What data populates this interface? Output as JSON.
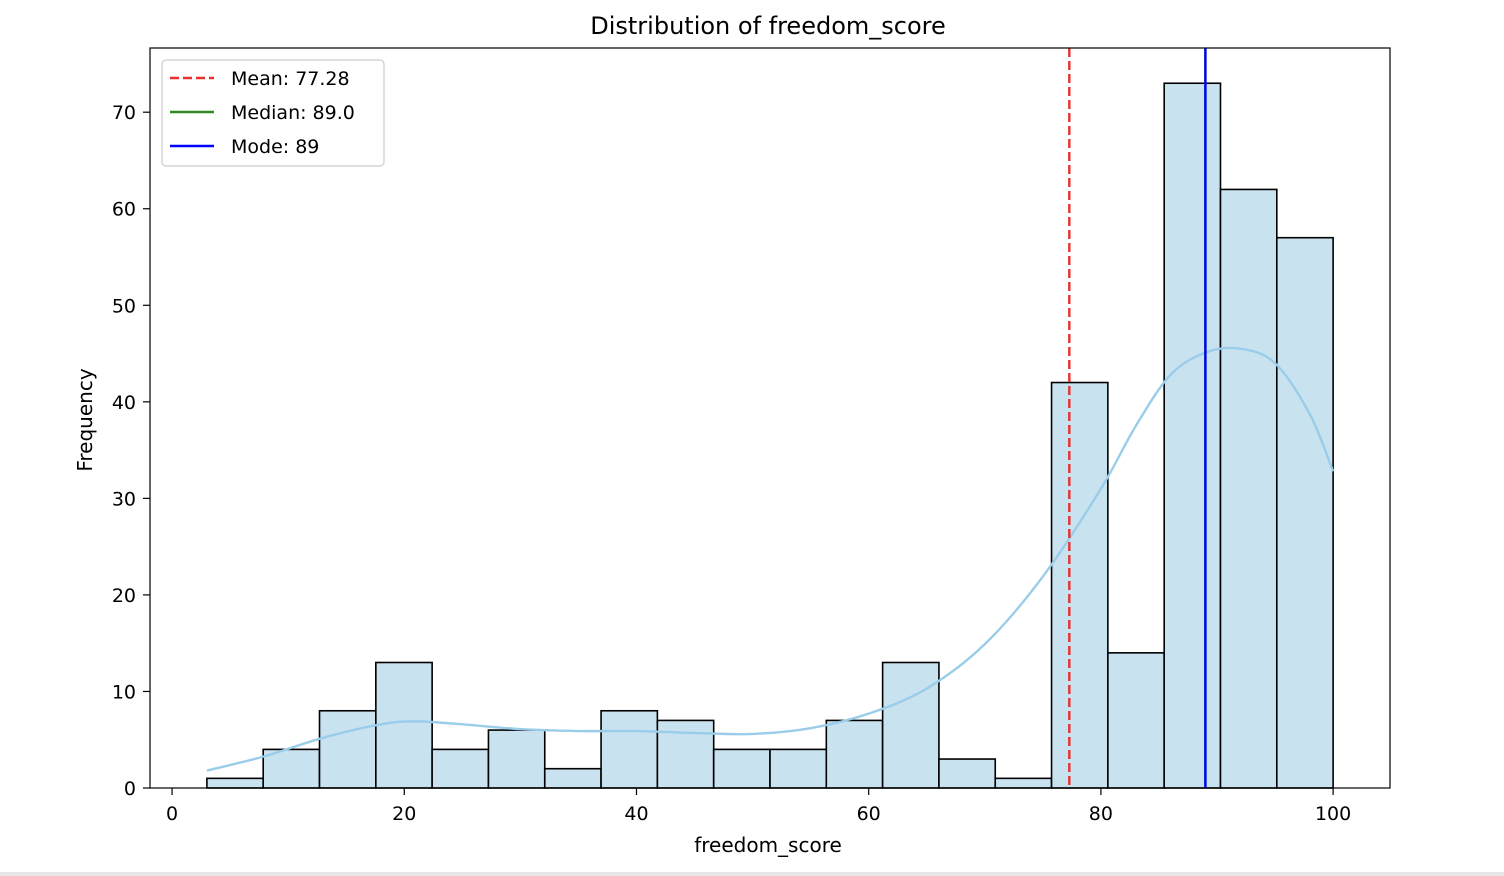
{
  "chart_data": {
    "type": "bar",
    "title": "Distribution of freedom_score",
    "xlabel": "freedom_score",
    "ylabel": "Frequency",
    "xlim": [
      -1.9,
      104.9
    ],
    "ylim": [
      0,
      76.65
    ],
    "xticks": [
      0,
      20,
      40,
      60,
      80,
      100
    ],
    "yticks": [
      0,
      10,
      20,
      30,
      40,
      50,
      60,
      70
    ],
    "bins": {
      "edges": [
        3,
        7.85,
        12.7,
        17.55,
        22.4,
        27.25,
        32.1,
        36.95,
        41.8,
        46.65,
        51.5,
        56.35,
        61.2,
        66.05,
        70.9,
        75.75,
        80.6,
        85.45,
        90.3,
        95.15,
        100
      ],
      "counts": [
        1,
        4,
        8,
        13,
        4,
        6,
        2,
        8,
        7,
        4,
        4,
        7,
        13,
        3,
        1,
        42,
        14,
        73,
        62,
        57
      ]
    },
    "kde": {
      "x": [
        3,
        8,
        13,
        18,
        21,
        25,
        30,
        35,
        40,
        45,
        50,
        55,
        60,
        65,
        70,
        75,
        80,
        83,
        86,
        89,
        92,
        95,
        98,
        100
      ],
      "y": [
        1.8,
        3.3,
        5.2,
        6.6,
        6.9,
        6.6,
        6.1,
        5.9,
        5.9,
        5.7,
        5.6,
        6.2,
        7.7,
        10.3,
        14.9,
        21.9,
        31.0,
        37.5,
        42.8,
        45.1,
        45.5,
        44.0,
        38.7,
        32.8
      ]
    },
    "reference_lines": [
      {
        "name": "Mean: 77.28",
        "value": 77.28,
        "color": "#e8302e",
        "style": "dashed"
      },
      {
        "name": "Median: 89.0",
        "value": 89.0,
        "color": "#2e8b1f",
        "style": "solid"
      },
      {
        "name": "Mode: 89",
        "value": 89,
        "color": "#0000ff",
        "style": "solid"
      }
    ],
    "colors": {
      "bar_fill": "#c9e2ef",
      "bar_edge": "#000000",
      "kde": "#9acde9"
    },
    "legend_position": "upper left",
    "grid": false
  }
}
